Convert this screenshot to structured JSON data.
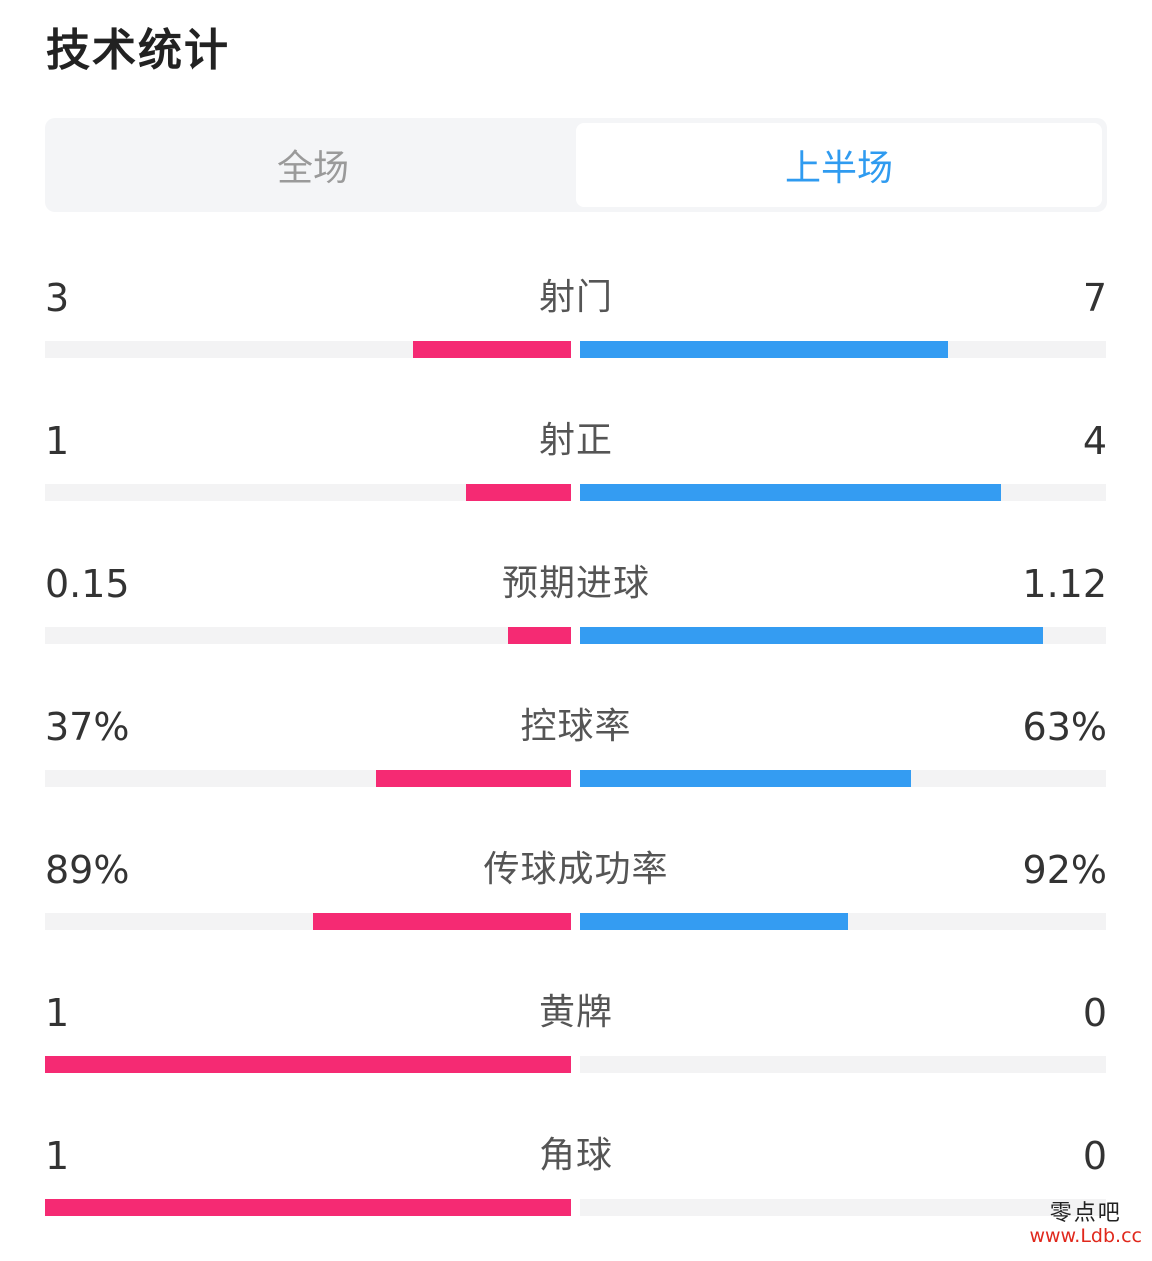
{
  "header": {
    "title": "技术统计"
  },
  "tabs": [
    {
      "label": "全场",
      "active": false
    },
    {
      "label": "上半场",
      "active": true
    }
  ],
  "colors": {
    "home": "#f52a73",
    "away": "#349cf2",
    "active_tab": "#2f9bf0"
  },
  "stats": [
    {
      "label": "射门",
      "home": "3",
      "away": "7",
      "home_ratio": 0.3,
      "away_ratio": 0.7
    },
    {
      "label": "射正",
      "home": "1",
      "away": "4",
      "home_ratio": 0.2,
      "away_ratio": 0.8
    },
    {
      "label": "预期进球",
      "home": "0.15",
      "away": "1.12",
      "home_ratio": 0.12,
      "away_ratio": 0.88
    },
    {
      "label": "控球率",
      "home": "37%",
      "away": "63%",
      "home_ratio": 0.37,
      "away_ratio": 0.63
    },
    {
      "label": "传球成功率",
      "home": "89%",
      "away": "92%",
      "home_ratio": 0.49,
      "away_ratio": 0.51
    },
    {
      "label": "黄牌",
      "home": "1",
      "away": "0",
      "home_ratio": 1.0,
      "away_ratio": 0.0
    },
    {
      "label": "角球",
      "home": "1",
      "away": "0",
      "home_ratio": 1.0,
      "away_ratio": 0.0
    }
  ],
  "watermark": {
    "name": "零点吧",
    "url": "www.Ldb.cc"
  }
}
